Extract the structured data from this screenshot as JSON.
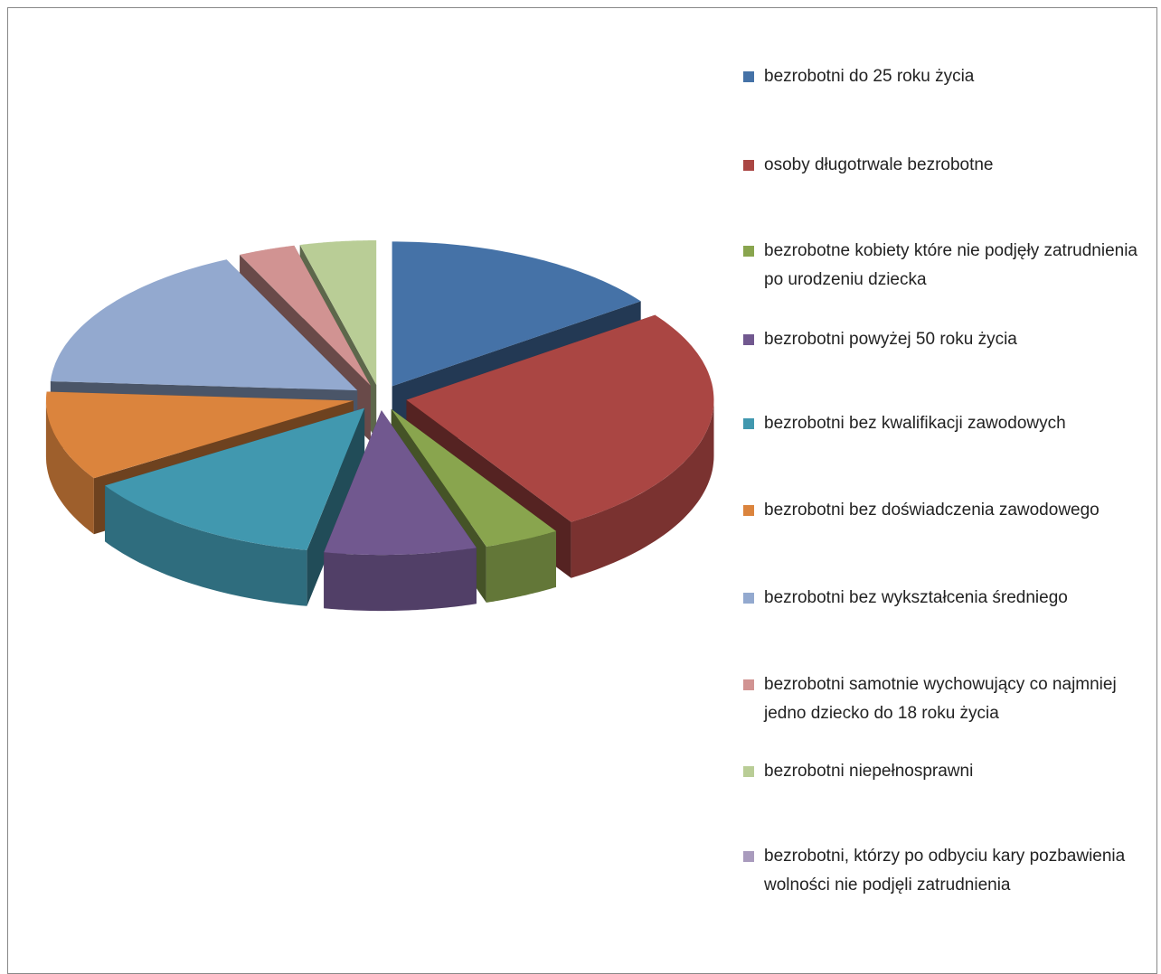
{
  "chart_data": {
    "type": "pie",
    "three_d": true,
    "exploded": true,
    "categories": [
      "bezrobotni do 25 roku życia",
      "osoby długotrwale bezrobotne",
      "bezrobotne kobiety które nie podjęły zatrudnienia po urodzeniu dziecka",
      "bezrobotni powyżej 50 roku życia",
      "bezrobotni bez kwalifikacji zawodowych",
      "bezrobotni bez doświadczenia zawodowego",
      "bezrobotni bez wykształcenia średniego",
      "bezrobotni samotnie wychowujący co najmniej jedno dziecko do 18 roku życia",
      "bezrobotni niepełnosprawni",
      "bezrobotni, którzy po odbyciu kary pozbawienia wolności nie podjęli zatrudnienia"
    ],
    "values": [
      15,
      26,
      4,
      8,
      13,
      10,
      17,
      3,
      4,
      0
    ],
    "colors": [
      "#4572a7",
      "#aa4643",
      "#89a54e",
      "#71588f",
      "#4198af",
      "#db843d",
      "#93a9cf",
      "#d19392",
      "#b9cd96",
      "#a99bbd"
    ],
    "legend": "right"
  }
}
